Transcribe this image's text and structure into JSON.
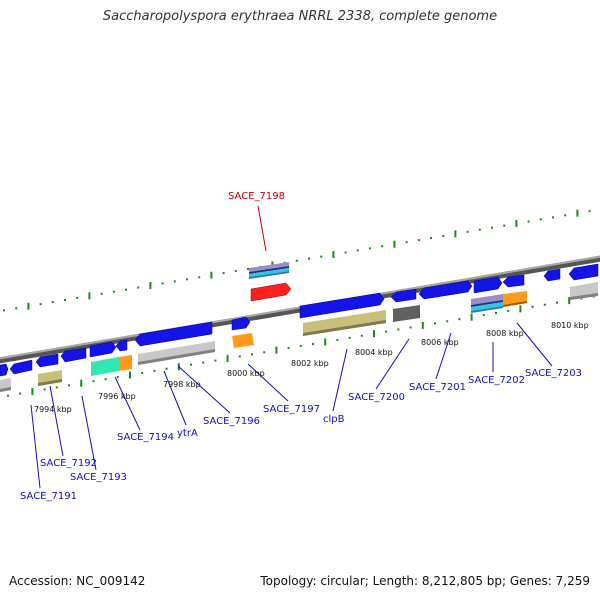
{
  "title": "Saccharopolyspora erythraea NRRL 2338, complete genome",
  "footer": {
    "accession": "Accession: NC_009142",
    "topology": "Topology: circular; Length: 8,212,805 bp; Genes: 7,259"
  },
  "colors": {
    "backbone": "#808080",
    "tick": "#1a8c1a",
    "label_default": "#1010c0",
    "label_highlight": "#d00000",
    "cds": "#1414e6",
    "trna": "#ff2020",
    "rrna_olive": "#c8c07a",
    "gray": "#c8c8c8",
    "orange": "#ff9a1a",
    "teal": "#30e0b0",
    "dark": "#606060",
    "lavender": "#9c8cc8"
  },
  "ticks": [
    {
      "kbp": 7994,
      "label": "7994 kbp"
    },
    {
      "kbp": 7996,
      "label": "7996 kbp"
    },
    {
      "kbp": 7998,
      "label": "7998 kbp"
    },
    {
      "kbp": 8000,
      "label": "8000 kbp"
    },
    {
      "kbp": 8002,
      "label": "8002 kbp"
    },
    {
      "kbp": 8004,
      "label": "8004 kbp"
    },
    {
      "kbp": 8006,
      "label": "8006 kbp"
    },
    {
      "kbp": 8008,
      "label": "8008 kbp"
    },
    {
      "kbp": 8010,
      "label": "8010 kbp"
    }
  ],
  "gene_labels": [
    {
      "name": "SACE_7191",
      "highlight": false
    },
    {
      "name": "SACE_7192",
      "highlight": false
    },
    {
      "name": "SACE_7193",
      "highlight": false
    },
    {
      "name": "SACE_7194",
      "highlight": false
    },
    {
      "name": "ytrA",
      "highlight": false
    },
    {
      "name": "SACE_7196",
      "highlight": false
    },
    {
      "name": "SACE_7197",
      "highlight": false
    },
    {
      "name": "SACE_7198",
      "highlight": true
    },
    {
      "name": "clpB",
      "highlight": false
    },
    {
      "name": "SACE_7200",
      "highlight": false
    },
    {
      "name": "SACE_7201",
      "highlight": false
    },
    {
      "name": "SACE_7202",
      "highlight": false
    },
    {
      "name": "SACE_7203",
      "highlight": false
    }
  ]
}
